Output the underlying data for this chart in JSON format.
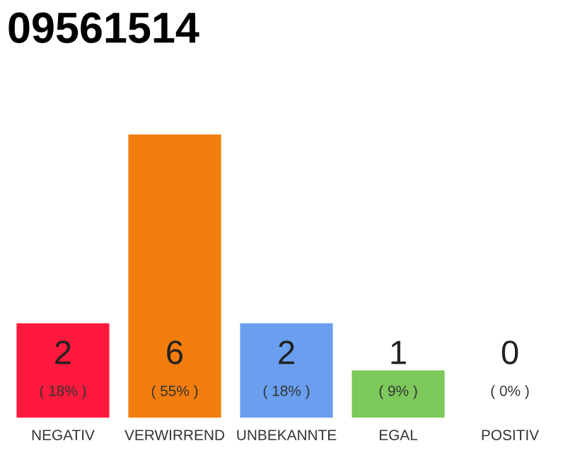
{
  "chart_data": {
    "type": "bar",
    "title": "09561514",
    "categories": [
      "NEGATIV",
      "VERWIRREND",
      "UNBEKANNTE",
      "EGAL",
      "POSITIV"
    ],
    "values": [
      2,
      6,
      2,
      1,
      0
    ],
    "colors": [
      "#ff1a3d",
      "#f27d0c",
      "#6a9ff0",
      "#7dc95b",
      "#9e9e9e"
    ],
    "value_labels": [
      "2\n( 18% )",
      "6\n( 55% )",
      "2\n( 18% )",
      "1\n( 9% )",
      "0\n( 0% )"
    ],
    "ylim": [
      0,
      6
    ],
    "tick_labels": "x",
    "grid": false,
    "legend": false
  }
}
